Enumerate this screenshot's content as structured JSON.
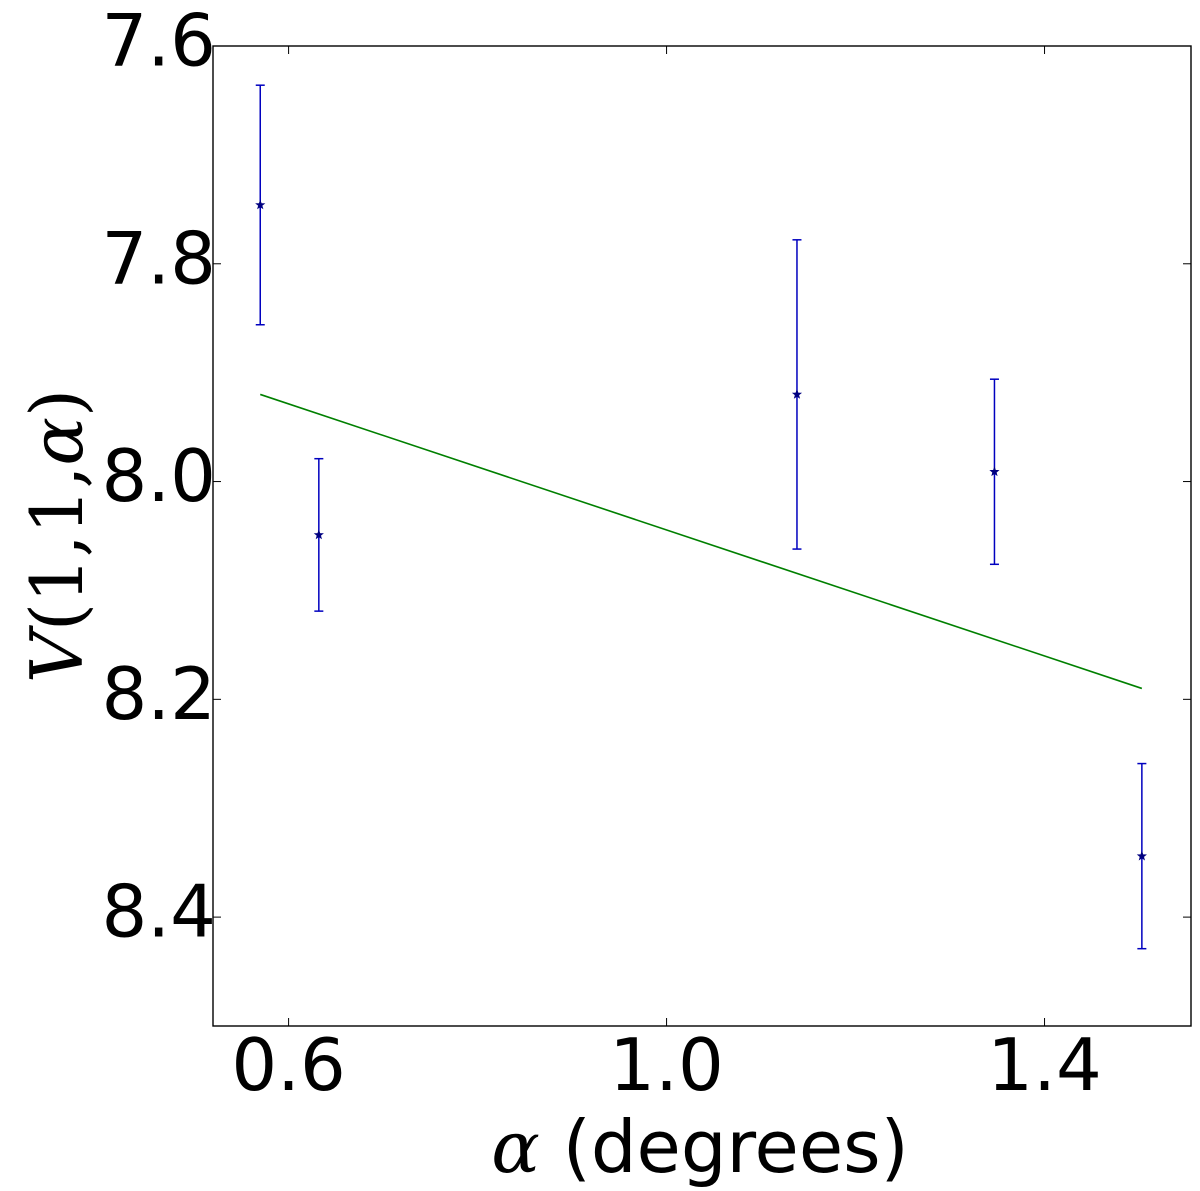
{
  "chart_data": {
    "type": "scatter",
    "xlabel": {
      "symbol": "α",
      "text": " (degrees)"
    },
    "ylabel": {
      "symbol": "V",
      "text": "(1,1,",
      "symbol2": "α",
      "close": ")"
    },
    "xlim": [
      0.52,
      1.555
    ],
    "ylim": [
      8.5,
      7.6
    ],
    "y_inverted": true,
    "x_ticks": [
      0.6,
      1.0,
      1.4
    ],
    "x_tick_labels": [
      "0.6",
      "1.0",
      "1.4"
    ],
    "y_ticks": [
      7.6,
      7.8,
      8.0,
      8.2,
      8.4
    ],
    "y_tick_labels": [
      "7.6",
      "7.8",
      "8.0",
      "8.2",
      "8.4"
    ],
    "grid": false,
    "series": [
      {
        "kind": "errorbar",
        "marker": "star",
        "color": "#0000bf",
        "points": [
          {
            "x": 0.57,
            "y": 7.746,
            "yerr": 0.11
          },
          {
            "x": 0.632,
            "y": 8.049,
            "yerr": 0.07
          },
          {
            "x": 1.138,
            "y": 7.92,
            "yerr": 0.142
          },
          {
            "x": 1.347,
            "y": 7.991,
            "yerr": 0.085
          },
          {
            "x": 1.503,
            "y": 8.344,
            "yerr": 0.085
          }
        ]
      },
      {
        "kind": "line",
        "color": "#008000",
        "points": [
          {
            "x": 0.57,
            "y": 7.92
          },
          {
            "x": 1.503,
            "y": 8.19
          }
        ]
      }
    ]
  }
}
